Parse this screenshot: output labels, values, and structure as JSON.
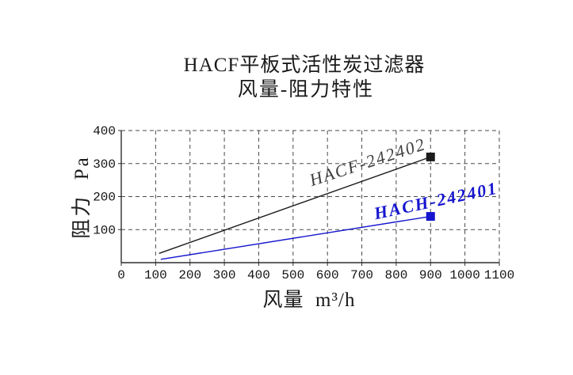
{
  "page": {
    "background": "#ffffff"
  },
  "title": {
    "line1": "HACF平板式活性炭过滤器",
    "line2": "风量-阻力特性"
  },
  "chart_data": {
    "type": "line",
    "title": "HACF平板式活性炭过滤器",
    "subtitle": "风量-阻力特性",
    "xlabel": "风量  m³/h",
    "ylabel": "阻力  Pa",
    "xlim": [
      0,
      1100
    ],
    "ylim": [
      0,
      400
    ],
    "x_ticks": [
      0,
      100,
      200,
      300,
      400,
      500,
      600,
      700,
      800,
      900,
      1000,
      1100
    ],
    "y_ticks": [
      100,
      200,
      300,
      400
    ],
    "grid": "dashed",
    "grid_color": "#4a4a4a",
    "axis_color": "#2e2e2e",
    "tick_label_color": "#141414",
    "legend_position": "inline-labels",
    "series": [
      {
        "name": "HACF-242402",
        "color": "#1c1c1c",
        "label_color": "#3d3d3d",
        "marker": "square",
        "points": [
          [
            110,
            28
          ],
          [
            900,
            320
          ]
        ],
        "marker_at": [
          900,
          320
        ]
      },
      {
        "name": "HACH-242401",
        "color": "#1515cf",
        "label_color": "#1515cf",
        "marker": "square",
        "points": [
          [
            115,
            10
          ],
          [
            900,
            140
          ]
        ],
        "marker_at": [
          900,
          140
        ]
      }
    ]
  }
}
